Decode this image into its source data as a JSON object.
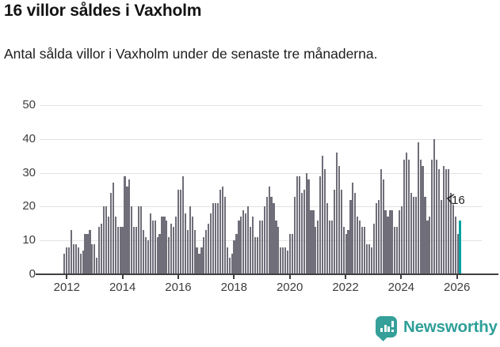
{
  "header": {
    "title": "16 villor såldes i Vaxholm",
    "subtitle": "Antal sålda villor i Vaxholm under de senaste tre månaderna."
  },
  "chart_data": {
    "type": "bar",
    "title": "16 villor såldes i Vaxholm",
    "subtitle": "Antal sålda villor i Vaxholm under de senaste tre månaderna.",
    "xlabel": "",
    "ylabel": "",
    "frequency": "monthly",
    "x_start": "2011-12",
    "x_end": "2026-02",
    "ylim": [
      0,
      50
    ],
    "yticks": [
      0,
      10,
      20,
      30,
      40,
      50
    ],
    "xticks": [
      2012,
      2014,
      2016,
      2018,
      2020,
      2022,
      2024,
      2026
    ],
    "grid": "horizontal",
    "legend": "none",
    "bar_color": "#6f6e79",
    "highlight_color": "#00a3a3",
    "values": [
      6,
      8,
      8,
      13,
      9,
      9,
      8,
      6,
      7,
      12,
      12,
      13,
      9,
      9,
      5,
      14,
      15,
      20,
      20,
      17,
      24,
      27,
      17,
      14,
      14,
      14,
      29,
      26,
      28,
      20,
      14,
      14,
      20,
      20,
      13,
      11,
      10,
      18,
      16,
      16,
      11,
      12,
      17,
      17,
      16,
      11,
      15,
      14,
      17,
      25,
      25,
      29,
      18,
      13,
      20,
      17,
      13,
      8,
      6,
      8,
      11,
      13,
      15,
      18,
      21,
      21,
      21,
      25,
      26,
      23,
      8,
      5,
      6,
      10,
      12,
      16,
      17,
      19,
      18,
      20,
      14,
      17,
      11,
      11,
      16,
      16,
      20,
      23,
      26,
      23,
      21,
      16,
      14,
      8,
      8,
      8,
      7,
      12,
      12,
      23,
      29,
      29,
      24,
      25,
      30,
      28,
      19,
      19,
      14,
      16,
      29,
      35,
      31,
      21,
      16,
      16,
      25,
      36,
      32,
      25,
      14,
      12,
      13,
      22,
      27,
      24,
      17,
      16,
      14,
      14,
      9,
      9,
      8,
      15,
      21,
      22,
      31,
      28,
      19,
      17,
      19,
      19,
      14,
      14,
      19,
      20,
      34,
      36,
      34,
      24,
      23,
      23,
      39,
      34,
      32,
      23,
      16,
      17,
      34,
      40,
      34,
      31,
      22,
      32,
      31,
      31,
      24,
      21,
      17,
      12,
      16
    ],
    "highlight": {
      "index": 170,
      "value": 16,
      "label": "16"
    }
  },
  "footer": {
    "brand": "Newsworthy",
    "brand_color": "#2f9f99",
    "logo_icon": "newsworthy-bar-chart-bubble-icon"
  }
}
